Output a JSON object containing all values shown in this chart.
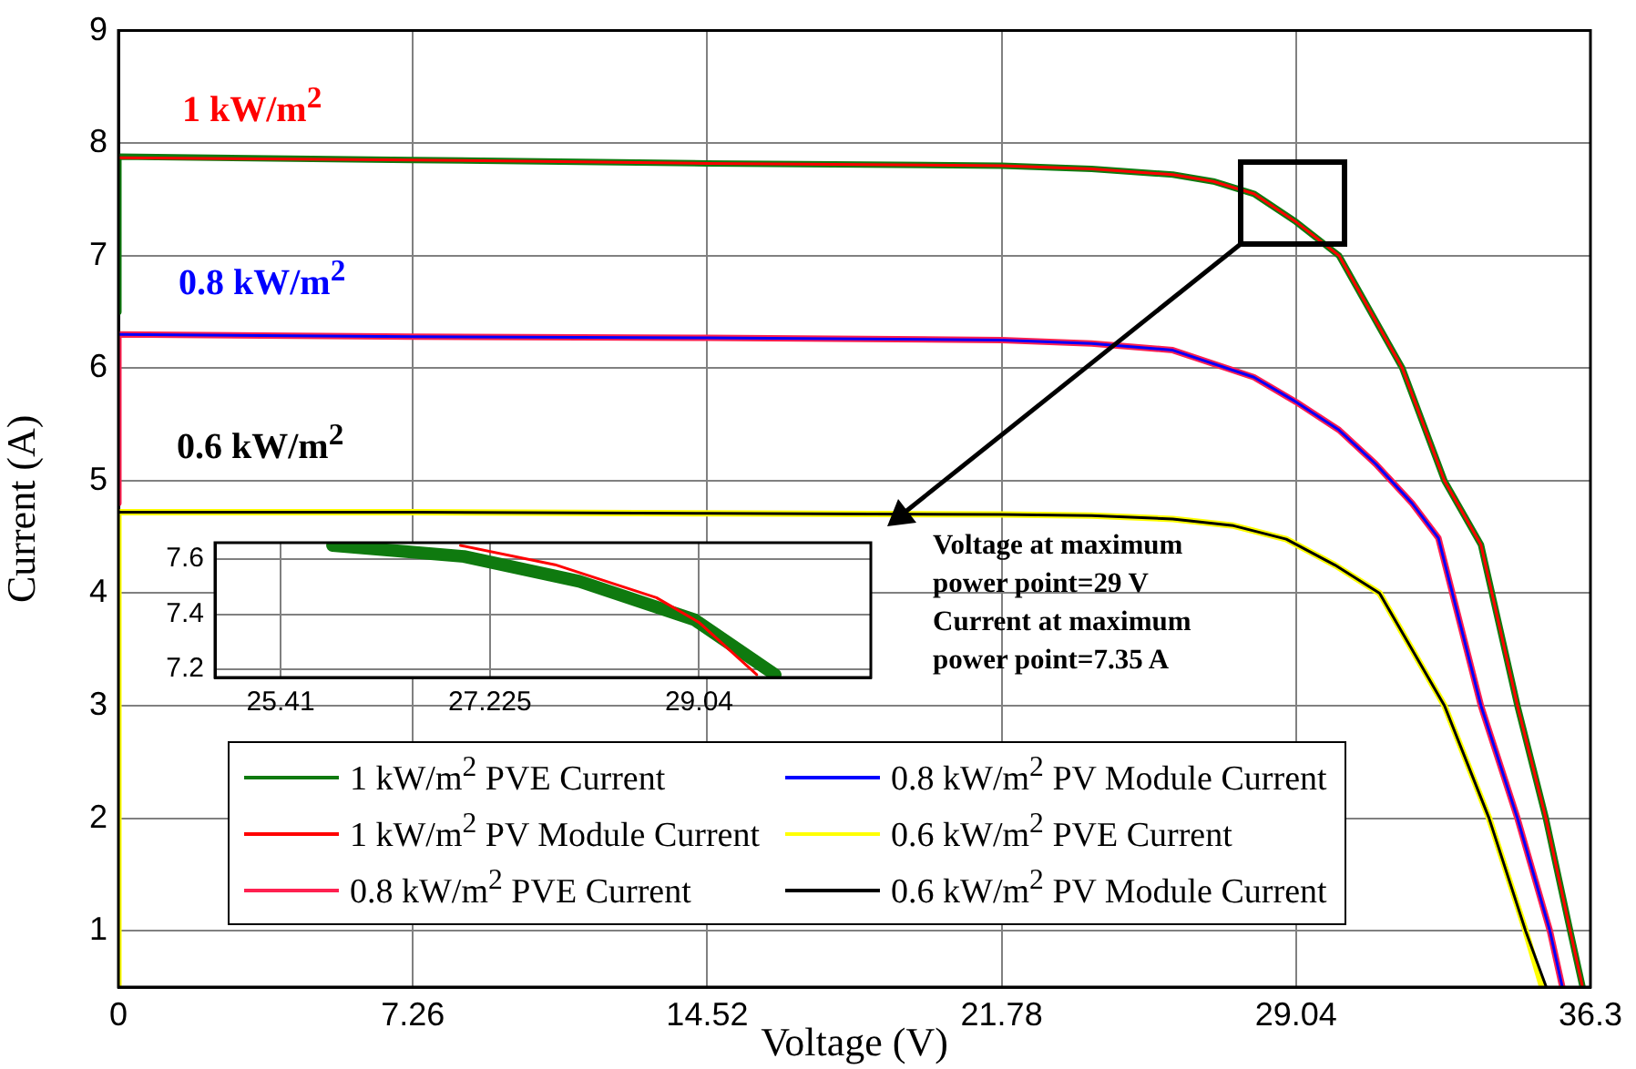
{
  "chart_data": [
    {
      "type": "line",
      "xlabel": "Voltage (V)",
      "ylabel": "Current (A)",
      "xlim": [
        0,
        36.3
      ],
      "ylim": [
        0.5,
        9
      ],
      "xticks": [
        0,
        7.26,
        14.52,
        21.78,
        29.04,
        36.3
      ],
      "yticks": [
        1,
        2,
        3,
        4,
        5,
        6,
        7,
        8,
        9
      ],
      "grid": true,
      "legend": "bottom",
      "annotations": [
        "1 kW/m$^{2}$",
        "0.8 kW/m$^{2}$",
        "0.6 kW/m$^{2}$",
        "Voltage at maximum power point=29 V",
        "Current at maximum power point=7.35 A"
      ],
      "series": [
        {
          "name": "1 kW/m$^{2}$ PVE Current",
          "color": "#0f7a0f",
          "x": [
            0,
            0,
            7.26,
            14.52,
            21.78,
            24,
            26,
            27,
            28,
            29.04,
            30.1,
            31.66,
            32.7,
            33.6,
            34.5,
            35.2,
            35.8,
            36.1
          ],
          "values": [
            6.5,
            7.88,
            7.85,
            7.82,
            7.8,
            7.77,
            7.72,
            7.66,
            7.55,
            7.3,
            7,
            6,
            5,
            4.43,
            3,
            2,
            1,
            0.51
          ]
        },
        {
          "name": "1 kW/m$^{2}$ PV Module Current",
          "color": "#ff0000",
          "x": [
            0,
            7.26,
            14.52,
            21.78,
            24,
            26,
            27,
            28,
            29.04,
            30.1,
            31.66,
            32.7,
            33.6,
            34.5,
            35.2,
            35.8,
            36.1
          ],
          "values": [
            7.87,
            7.85,
            7.82,
            7.8,
            7.77,
            7.72,
            7.66,
            7.55,
            7.3,
            7,
            6,
            5,
            4.43,
            3,
            2,
            1,
            0.51
          ]
        },
        {
          "name": "0.8 kW/m$^{2}$ PVE Current",
          "color": "#ff2050",
          "x": [
            0,
            0,
            7.26,
            14.52,
            21.78,
            24,
            26,
            28,
            29.04,
            30.1,
            31,
            31.9,
            32.55,
            33.6,
            34.5,
            35.3,
            35.6
          ],
          "values": [
            4.8,
            6.3,
            6.28,
            6.27,
            6.25,
            6.22,
            6.16,
            5.92,
            5.7,
            5.45,
            5.15,
            4.8,
            4.49,
            3,
            2,
            1,
            0.51
          ]
        },
        {
          "name": "0.8 kW/m$^{2}$ PV Module Current",
          "color": "#0000ff",
          "x": [
            0,
            7.26,
            14.52,
            21.78,
            24,
            26,
            28,
            29.04,
            30.1,
            31,
            31.9,
            32.55,
            33.6,
            34.5,
            35.3,
            35.6
          ],
          "values": [
            6.3,
            6.28,
            6.27,
            6.25,
            6.22,
            6.16,
            5.92,
            5.7,
            5.45,
            5.15,
            4.8,
            4.49,
            3,
            2,
            1,
            0.51
          ]
        },
        {
          "name": "0.6 kW/m$^{2}$ PVE Current",
          "color": "#ffff00",
          "x": [
            0,
            0,
            7.26,
            14.52,
            21.78,
            24,
            26,
            27.5,
            28.8,
            30,
            31.1,
            32.7,
            33.8,
            34.7,
            35.1
          ],
          "values": [
            0.5,
            4.72,
            4.72,
            4.71,
            4.7,
            4.69,
            4.66,
            4.6,
            4.48,
            4.25,
            4,
            3,
            2,
            1,
            0.51
          ]
        },
        {
          "name": "0.6 kW/m$^{2}$ PV Module Current",
          "color": "#000000",
          "x": [
            0,
            7.26,
            14.52,
            21.78,
            24,
            26,
            27.5,
            28.8,
            30,
            31.1,
            32.7,
            33.8,
            34.7,
            35.2
          ],
          "values": [
            4.72,
            4.72,
            4.71,
            4.7,
            4.69,
            4.66,
            4.6,
            4.48,
            4.25,
            4,
            3,
            2,
            1,
            0.51
          ]
        }
      ]
    },
    {
      "type": "line",
      "xlim": [
        24.84,
        30.53
      ],
      "ylim": [
        7.17,
        7.66
      ],
      "xticks": [
        25.41,
        27.225,
        29.04
      ],
      "yticks": [
        7.2,
        7.4,
        7.6
      ],
      "grid": true,
      "series": [
        {
          "color": "#0f7a0f",
          "x": [
            25.86,
            27,
            28,
            29,
            29.7
          ],
          "values": [
            7.65,
            7.61,
            7.52,
            7.38,
            7.18
          ]
        },
        {
          "color": "#ff0000",
          "x": [
            26.97,
            27.79,
            28.67,
            29.04,
            29.54
          ],
          "values": [
            7.65,
            7.58,
            7.46,
            7.37,
            7.18
          ]
        }
      ]
    }
  ]
}
